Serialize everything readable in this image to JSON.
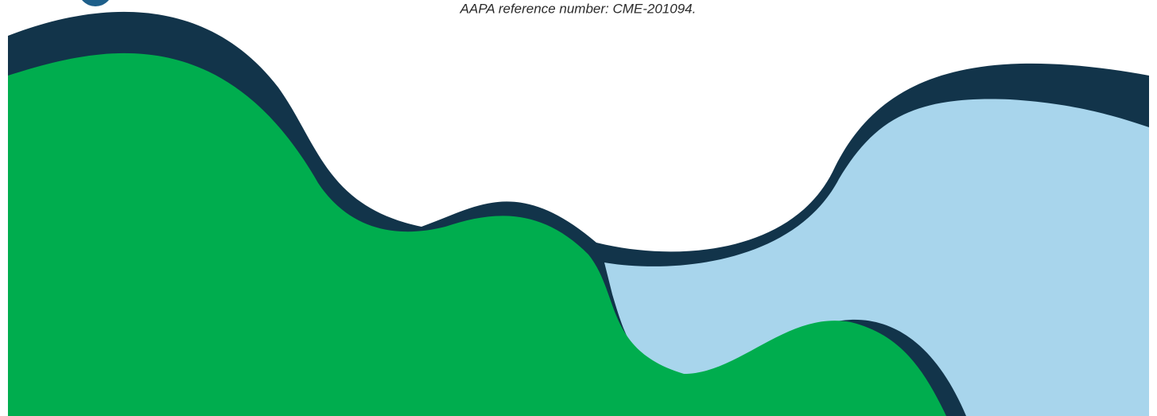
{
  "footer": {
    "reference": "AAPA reference number: CME-201094."
  }
}
